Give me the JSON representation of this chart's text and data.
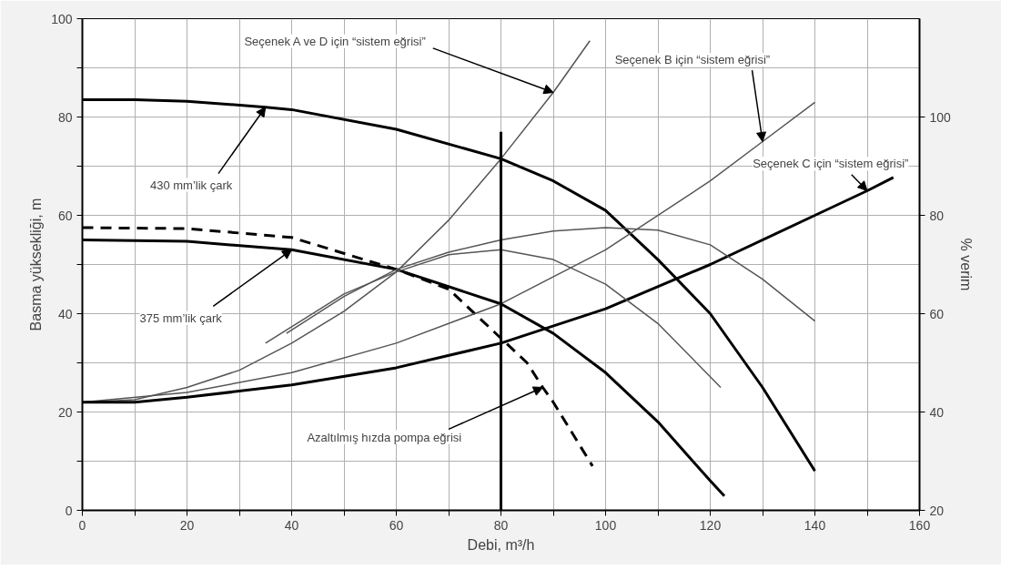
{
  "chart_data": {
    "type": "line",
    "xlabel": "Debi, m³/h",
    "ylabel": "Basma yüksekliği, m",
    "y2label": "% verim",
    "xlim": [
      0,
      160
    ],
    "xticks": [
      0,
      {
        "value": 10,
        "label": null
      },
      20,
      {
        "value": 30,
        "label": null
      },
      40,
      {
        "value": 50,
        "label": null
      },
      60,
      {
        "value": 70,
        "label": null
      },
      80,
      {
        "value": 90,
        "label": null
      },
      100,
      {
        "value": 110,
        "label": null
      },
      120,
      {
        "value": 130,
        "label": null
      },
      140,
      {
        "value": 150,
        "label": null
      },
      160
    ],
    "ylim": [
      0,
      100
    ],
    "yticks": [
      0,
      {
        "value": 10,
        "label": null
      },
      20,
      {
        "value": 30,
        "label": null
      },
      40,
      {
        "value": 50,
        "label": null
      },
      60,
      {
        "value": 70,
        "label": null
      },
      80,
      {
        "value": 90,
        "label": null
      },
      100
    ],
    "y2lim": [
      20,
      120
    ],
    "y2ticks": [
      20,
      40,
      60,
      80,
      100
    ],
    "grid": true,
    "marker": "none",
    "line_style": "solid",
    "series": [
      {
        "color": "#000000",
        "x": [
          0,
          10,
          20,
          35,
          40,
          60,
          80,
          90,
          100,
          110,
          120,
          130,
          140
        ],
        "values": [
          83.5,
          83.5,
          83.2,
          82,
          81.5,
          77.5,
          71.5,
          67,
          61,
          51,
          40,
          25,
          8
        ]
      },
      {
        "color": "#000000",
        "x": [
          0,
          20,
          40,
          60,
          80,
          90,
          100,
          110,
          120,
          122.7
        ],
        "values": [
          55,
          54.7,
          53,
          49,
          42,
          36,
          28,
          18,
          6,
          2.9
        ]
      },
      {
        "color": "#000000",
        "line_style": "dashed",
        "x": [
          0,
          20,
          40,
          60,
          70,
          80,
          85,
          88,
          90,
          97.5
        ],
        "values": [
          57.5,
          57.3,
          55.5,
          49,
          45,
          35,
          30,
          25,
          22,
          9
        ]
      },
      {
        "color": "#555555",
        "x": [
          0,
          10,
          20,
          30,
          40,
          50,
          60,
          70,
          80,
          90,
          97
        ],
        "values": [
          22,
          22.5,
          25,
          28.5,
          34,
          40.5,
          48.5,
          59,
          71.5,
          85,
          95.5
        ]
      },
      {
        "color": "#555555",
        "x": [
          0,
          20,
          40,
          60,
          80,
          100,
          120,
          130,
          140
        ],
        "values": [
          22,
          24,
          28,
          34,
          42,
          53,
          67,
          75,
          83
        ]
      },
      {
        "color": "#000000",
        "x": [
          0,
          10,
          20,
          40,
          60,
          80,
          100,
          120,
          140,
          150,
          155
        ],
        "values": [
          22,
          22,
          23,
          25.5,
          29,
          34,
          41,
          50,
          60,
          65,
          67.7
        ]
      },
      {
        "color": "#555555",
        "axis": "y2",
        "x": [
          39,
          50,
          60,
          70,
          80,
          90,
          100,
          110,
          120,
          130,
          140
        ],
        "values": [
          56,
          63.5,
          69,
          72.5,
          75,
          76.8,
          77.5,
          77,
          74,
          67,
          58.5
        ]
      },
      {
        "color": "#555555",
        "axis": "y2",
        "x": [
          35,
          50,
          60,
          70,
          80,
          90,
          100,
          110,
          122
        ],
        "values": [
          54,
          64,
          68.5,
          72,
          73,
          71,
          66,
          58,
          45
        ]
      },
      {
        "color": "#000000",
        "x": [
          80,
          80
        ],
        "values": [
          0,
          77
        ]
      }
    ],
    "annotations": [
      {
        "text": "Seçenek A ve D için “sistem eğrisi”",
        "x": 90,
        "y": 85
      },
      {
        "text": "Seçenek B için “sistem eğrisi”",
        "x": 130,
        "y": 75
      },
      {
        "text": "Seçenek C için “sistem eğrisi”",
        "x": 150,
        "y": 65
      },
      {
        "text": "430 mm’lik çark",
        "x": 35,
        "y": 82
      },
      {
        "text": "375 mm’lik çark",
        "x": 40,
        "y": 53
      },
      {
        "text": "Azaltılmış hızda pompa eğrisi",
        "x": 88,
        "y": 25
      }
    ]
  }
}
